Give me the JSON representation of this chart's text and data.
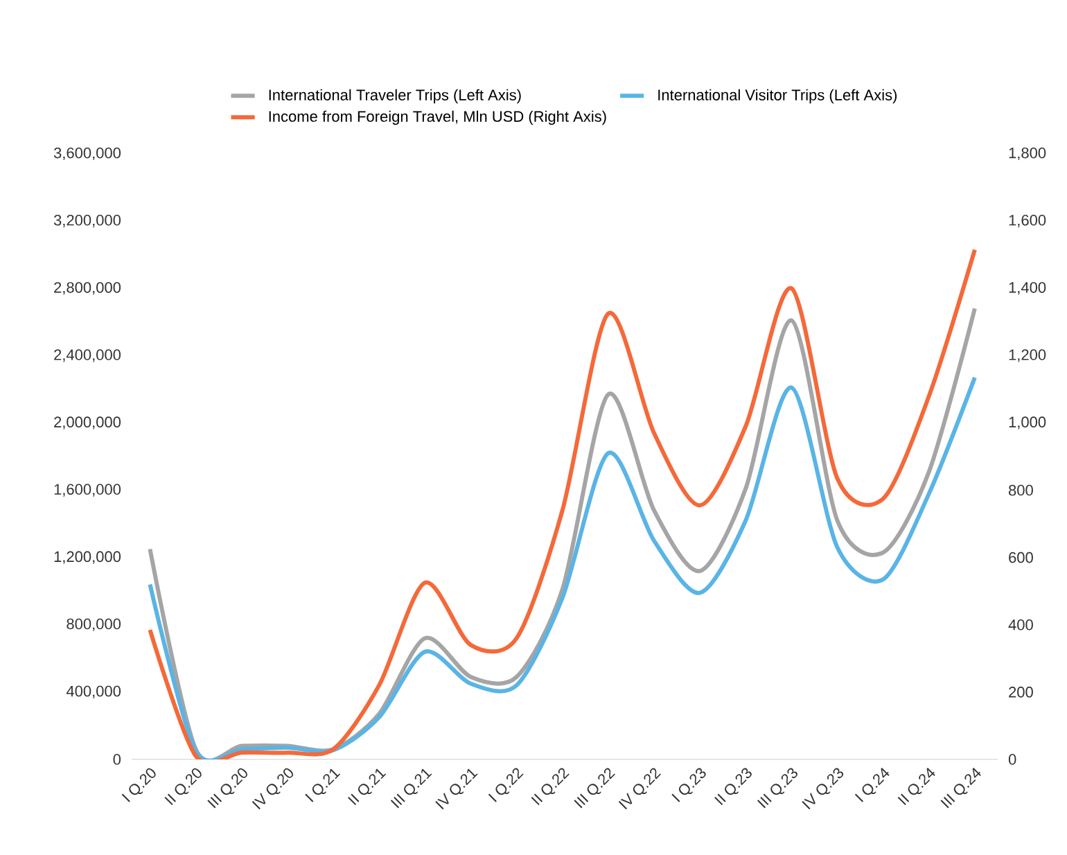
{
  "chart_data": {
    "type": "line",
    "categories": [
      "I Q.20",
      "II Q.20",
      "III Q.20",
      "IV Q.20",
      "I Q.21",
      "II Q.21",
      "III Q.21",
      "IV Q.21",
      "I Q.22",
      "II Q.22",
      "III Q.22",
      "IV Q.22",
      "I Q.23",
      "II Q.23",
      "III Q.23",
      "IV Q.23",
      "I Q.24",
      "II Q.24",
      "III Q.24"
    ],
    "series": [
      {
        "name": "International Traveler Trips (Left Axis)",
        "color": "#a5a5a5",
        "values": [
          1250000,
          60000,
          80000,
          80000,
          60000,
          270000,
          720000,
          490000,
          490000,
          1010000,
          2170000,
          1480000,
          1120000,
          1610000,
          2610000,
          1420000,
          1230000,
          1710000,
          2680000
        ]
      },
      {
        "name": "International Visitor Trips (Left Axis)",
        "color": "#5ab4e5",
        "values": [
          1040000,
          50000,
          60000,
          70000,
          55000,
          250000,
          640000,
          450000,
          440000,
          960000,
          1820000,
          1300000,
          990000,
          1420000,
          2210000,
          1260000,
          1070000,
          1580000,
          2270000
        ]
      },
      {
        "name": "Income from Foreign Travel, Mln USD (Right Axis)",
        "color": "#f4693a",
        "axis": "y2",
        "values": [
          385,
          10,
          20,
          20,
          30,
          220,
          525,
          340,
          360,
          740,
          1325,
          970,
          755,
          990,
          1400,
          835,
          775,
          1080,
          1515
        ]
      }
    ],
    "ylim": [
      0,
      3600000
    ],
    "yticks": [
      {
        "value": 0,
        "label": "0"
      },
      {
        "value": 400000,
        "label": "400,000"
      },
      {
        "value": 800000,
        "label": "800,000"
      },
      {
        "value": 1200000,
        "label": "1,200,000"
      },
      {
        "value": 1600000,
        "label": "1,600,000"
      },
      {
        "value": 2000000,
        "label": "2,000,000"
      },
      {
        "value": 2400000,
        "label": "2,400,000"
      },
      {
        "value": 2800000,
        "label": "2,800,000"
      },
      {
        "value": 3200000,
        "label": "3,200,000"
      },
      {
        "value": 3600000,
        "label": "3,600,000"
      }
    ],
    "y2lim": [
      0,
      1800
    ],
    "y2ticks": [
      {
        "value": 0,
        "label": "0"
      },
      {
        "value": 200,
        "label": "200"
      },
      {
        "value": 400,
        "label": "400"
      },
      {
        "value": 600,
        "label": "600"
      },
      {
        "value": 800,
        "label": "800"
      },
      {
        "value": 1000,
        "label": "1,000"
      },
      {
        "value": 1200,
        "label": "1,200"
      },
      {
        "value": 1400,
        "label": "1,400"
      },
      {
        "value": 1600,
        "label": "1,600"
      },
      {
        "value": 1800,
        "label": "1,800"
      }
    ],
    "legend": "top",
    "grid": false,
    "marker": "none",
    "line_style": "solid"
  }
}
